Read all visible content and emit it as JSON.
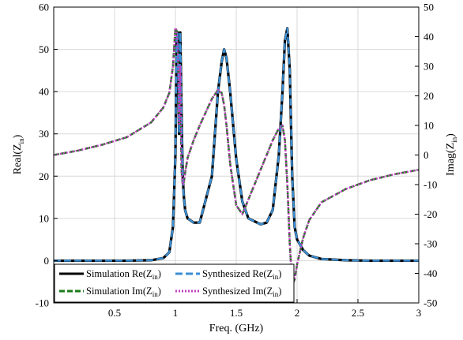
{
  "chart_data": {
    "type": "line",
    "xlabel": "Freq. (GHz)",
    "ylabel_left": {
      "base": "Real(Z",
      "sub": "in",
      "close": ")"
    },
    "ylabel_right": {
      "base": "Imag(Z",
      "sub": "in",
      "close": ")"
    },
    "xlim": [
      0,
      3
    ],
    "ylim_left": [
      -10,
      60
    ],
    "ylim_right": [
      -50,
      50
    ],
    "x_ticks": [
      0.5,
      1,
      1.5,
      2,
      2.5,
      3
    ],
    "x_tick_labels": [
      "0.5",
      "1",
      "1.5",
      "2",
      "2.5",
      "3"
    ],
    "y_left_ticks": [
      -10,
      0,
      10,
      20,
      30,
      40,
      50,
      60
    ],
    "y_left_tick_labels": [
      "-10",
      "0",
      "10",
      "20",
      "30",
      "40",
      "50",
      "60"
    ],
    "y_right_ticks": [
      -50,
      -40,
      -30,
      -20,
      -10,
      0,
      10,
      20,
      30,
      40,
      50
    ],
    "y_right_tick_labels": [
      "-50",
      "-40",
      "-30",
      "-20",
      "-10",
      "0",
      "10",
      "20",
      "30",
      "40",
      "50"
    ],
    "grid": true,
    "legend_position": "bottom-left",
    "x": [
      0.0,
      0.2,
      0.4,
      0.6,
      0.8,
      0.9,
      0.95,
      0.98,
      1.0,
      1.01,
      1.02,
      1.03,
      1.04,
      1.05,
      1.06,
      1.07,
      1.08,
      1.1,
      1.15,
      1.2,
      1.3,
      1.35,
      1.38,
      1.4,
      1.42,
      1.45,
      1.5,
      1.55,
      1.6,
      1.7,
      1.75,
      1.8,
      1.85,
      1.88,
      1.9,
      1.92,
      1.94,
      1.96,
      1.98,
      2.0,
      2.05,
      2.1,
      2.2,
      2.4,
      2.6,
      2.8,
      3.0
    ],
    "series": [
      {
        "name": "Simulation Re(Z_in)",
        "axis": "left",
        "color": "#000000",
        "style": "solid",
        "values": [
          0,
          0,
          0,
          0,
          0.1,
          0.6,
          2.0,
          8,
          25,
          52,
          54,
          30,
          54,
          36,
          20,
          15,
          12,
          10,
          9,
          9,
          20,
          40,
          47,
          50,
          48,
          40,
          24,
          14,
          10,
          8.6,
          9,
          12,
          25,
          40,
          52,
          55,
          45,
          20,
          8,
          5,
          2.5,
          1.2,
          0.4,
          0.1,
          0,
          0,
          0
        ]
      },
      {
        "name": "Simulation Im(Z_in)",
        "axis": "right",
        "color": "#1a7a1a",
        "style": "dashed",
        "values": [
          0,
          1.5,
          3.5,
          6,
          11,
          16,
          21,
          30,
          43,
          42,
          35,
          10,
          30,
          -5,
          -10,
          -9,
          -6,
          -1,
          5,
          10,
          19,
          22,
          21,
          17,
          10,
          -3,
          -17,
          -20,
          -15,
          -5,
          0,
          5,
          9,
          10,
          5,
          -10,
          -30,
          -44,
          -42,
          -37,
          -28,
          -22,
          -16,
          -11.5,
          -8.5,
          -6.5,
          -5
        ]
      },
      {
        "name": "Synthesized Re(Z_in)",
        "axis": "left",
        "color": "#3b8fd4",
        "style": "dash",
        "values": [
          0,
          0,
          0,
          0,
          0.1,
          0.6,
          2.0,
          8,
          25,
          52,
          54,
          30,
          54,
          36,
          20,
          15,
          12,
          10,
          9,
          9,
          20,
          40,
          47,
          50,
          48,
          40,
          24,
          14,
          10,
          8.6,
          9,
          12,
          25,
          40,
          52,
          55,
          45,
          20,
          8,
          5,
          2.5,
          1.2,
          0.4,
          0.1,
          0,
          0,
          0
        ]
      },
      {
        "name": "Synthesized Im(Z_in)",
        "axis": "right",
        "color": "#c040c0",
        "style": "dotted",
        "values": [
          0,
          1.5,
          3.5,
          6,
          11,
          16,
          21,
          30,
          43,
          42,
          35,
          10,
          30,
          -5,
          -10,
          -9,
          -6,
          -1,
          5,
          10,
          19,
          22,
          21,
          17,
          10,
          -3,
          -17,
          -20,
          -15,
          -5,
          0,
          5,
          9,
          10,
          5,
          -10,
          -30,
          -44,
          -42,
          -37,
          -28,
          -22,
          -16,
          -11.5,
          -8.5,
          -6.5,
          -5
        ]
      }
    ],
    "legend": [
      {
        "base": "Simulation Re(Z",
        "sub": "in",
        "close": ")"
      },
      {
        "base": "Synthesized Re(Z",
        "sub": "in",
        "close": ")"
      },
      {
        "base": "Simulation Im(Z",
        "sub": "in",
        "close": ")"
      },
      {
        "base": "Synthesized Im(Z",
        "sub": "in",
        "close": ")"
      }
    ]
  }
}
